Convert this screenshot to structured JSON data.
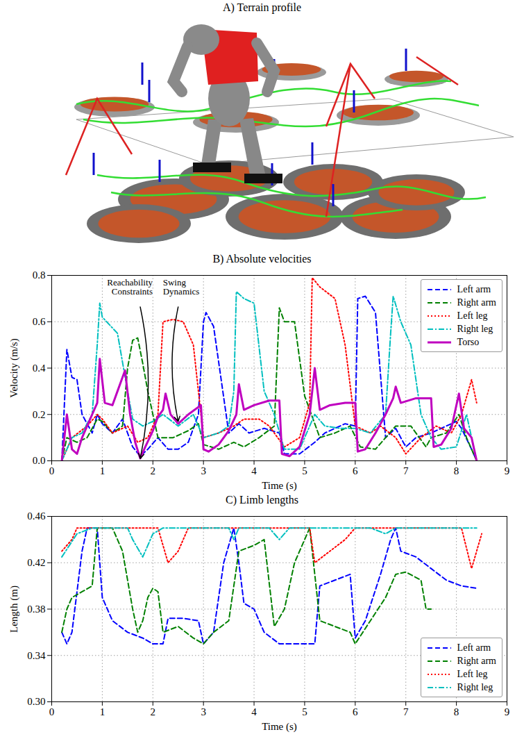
{
  "chart_data": [
    {
      "type": "illustration",
      "title": "A) Terrain profile"
    },
    {
      "type": "line",
      "title": "B) Absolute velocities",
      "x_label": "Time (s)",
      "y_label": "Velocity (m/s)",
      "xlim": [
        0,
        9
      ],
      "xticks": [
        0,
        1,
        2,
        3,
        4,
        5,
        6,
        7,
        8,
        9
      ],
      "ylim": [
        0,
        0.8
      ],
      "yticks": [
        {
          "value": 0,
          "label": "0.0"
        },
        {
          "value": 0.2,
          "label": "0.2"
        },
        {
          "value": 0.4,
          "label": "0.4"
        },
        {
          "value": 0.6,
          "label": "0.6"
        },
        {
          "value": 0.8,
          "label": "0.8"
        }
      ],
      "grid": true,
      "legend": "upper right",
      "annotations": [
        {
          "text": "Reachability Constraints",
          "x": 1.75,
          "y": 0.01
        },
        {
          "text": "Swing Dynamics",
          "x": 2.5,
          "y": 0.17
        }
      ],
      "series": [
        {
          "name": "Left arm",
          "color": "#0000ff",
          "line_style": "dashed",
          "x": [
            0.2,
            0.3,
            0.4,
            0.5,
            0.6,
            0.8,
            0.9,
            1.0,
            1.2,
            1.4,
            1.6,
            1.75,
            1.9,
            2.1,
            2.3,
            2.5,
            2.7,
            2.9,
            3.0,
            3.05,
            3.2,
            3.5,
            3.7,
            3.9,
            4.2,
            4.5,
            4.6,
            4.9,
            5.2,
            5.4,
            5.8,
            6.0,
            6.05,
            6.2,
            6.4,
            6.6,
            6.8,
            7.0,
            7.2,
            7.5,
            7.8,
            8.0,
            8.1,
            8.3,
            8.4
          ],
          "values": [
            0.0,
            0.48,
            0.36,
            0.35,
            0.2,
            0.12,
            0.2,
            0.16,
            0.12,
            0.18,
            0.06,
            0.02,
            0.05,
            0.1,
            0.05,
            0.05,
            0.08,
            0.2,
            0.6,
            0.64,
            0.58,
            0.12,
            0.16,
            0.12,
            0.14,
            0.12,
            0.03,
            0.03,
            0.08,
            0.12,
            0.16,
            0.15,
            0.7,
            0.71,
            0.64,
            0.1,
            0.14,
            0.06,
            0.1,
            0.12,
            0.15,
            0.17,
            0.14,
            0.05,
            0.0
          ]
        },
        {
          "name": "Right arm",
          "color": "#008000",
          "line_style": "dashed",
          "x": [
            0.2,
            0.3,
            0.5,
            0.7,
            0.9,
            1.0,
            1.2,
            1.4,
            1.5,
            1.6,
            1.7,
            1.8,
            1.9,
            2.1,
            2.4,
            2.7,
            2.9,
            3.0,
            3.3,
            3.6,
            3.8,
            4.1,
            4.4,
            4.5,
            4.6,
            4.8,
            5.0,
            5.3,
            5.6,
            5.9,
            6.1,
            6.4,
            6.6,
            6.8,
            7.1,
            7.4,
            7.5,
            7.8,
            8.05,
            8.2,
            8.3,
            8.4
          ],
          "values": [
            0.0,
            0.1,
            0.08,
            0.1,
            0.18,
            0.17,
            0.12,
            0.15,
            0.4,
            0.52,
            0.53,
            0.42,
            0.3,
            0.1,
            0.1,
            0.13,
            0.16,
            0.07,
            0.05,
            0.08,
            0.06,
            0.1,
            0.15,
            0.66,
            0.6,
            0.6,
            0.28,
            0.1,
            0.12,
            0.15,
            0.06,
            0.05,
            0.1,
            0.15,
            0.15,
            0.06,
            0.1,
            0.12,
            0.2,
            0.1,
            0.05,
            0.0
          ]
        },
        {
          "name": "Left leg",
          "color": "#ff0000",
          "line_style": "dotted",
          "x": [
            0.2,
            0.4,
            0.7,
            0.9,
            1.0,
            1.2,
            1.5,
            1.7,
            1.9,
            2.1,
            2.2,
            2.4,
            2.6,
            2.8,
            3.0,
            3.3,
            3.6,
            3.8,
            4.1,
            4.3,
            4.6,
            4.9,
            5.1,
            5.15,
            5.3,
            5.6,
            5.8,
            6.0,
            6.3,
            6.5,
            6.8,
            7.0,
            7.3,
            7.6,
            7.9,
            8.1,
            8.3,
            8.4
          ],
          "values": [
            0.0,
            0.1,
            0.15,
            0.2,
            0.18,
            0.12,
            0.15,
            0.08,
            0.1,
            0.2,
            0.6,
            0.61,
            0.6,
            0.5,
            0.1,
            0.12,
            0.15,
            0.18,
            0.18,
            0.15,
            0.06,
            0.1,
            0.25,
            0.79,
            0.75,
            0.7,
            0.5,
            0.15,
            0.12,
            0.15,
            0.1,
            0.03,
            0.1,
            0.15,
            0.12,
            0.2,
            0.35,
            0.25
          ]
        },
        {
          "name": "Right leg",
          "color": "#00bfbf",
          "line_style": "dashdot",
          "x": [
            0.2,
            0.4,
            0.6,
            0.8,
            0.9,
            0.95,
            1.0,
            1.3,
            1.5,
            1.6,
            1.8,
            2.0,
            2.2,
            2.5,
            2.8,
            3.0,
            3.3,
            3.5,
            3.6,
            3.65,
            3.8,
            4.0,
            4.2,
            4.4,
            4.6,
            4.9,
            5.2,
            5.4,
            5.7,
            6.0,
            6.3,
            6.6,
            6.7,
            6.75,
            6.9,
            7.1,
            7.3,
            7.5,
            7.7,
            8.0,
            8.2,
            8.4
          ],
          "values": [
            0.0,
            0.1,
            0.12,
            0.2,
            0.5,
            0.68,
            0.62,
            0.55,
            0.3,
            0.18,
            0.15,
            0.17,
            0.2,
            0.15,
            0.2,
            0.1,
            0.12,
            0.15,
            0.3,
            0.73,
            0.7,
            0.68,
            0.3,
            0.2,
            0.05,
            0.05,
            0.2,
            0.15,
            0.14,
            0.14,
            0.12,
            0.2,
            0.55,
            0.71,
            0.6,
            0.5,
            0.2,
            0.1,
            0.05,
            0.06,
            0.2,
            0.0
          ]
        },
        {
          "name": "Torso",
          "color": "#bf00bf",
          "line_style": "solid",
          "x": [
            0.2,
            0.3,
            0.4,
            0.5,
            0.6,
            0.8,
            0.9,
            0.95,
            1.05,
            1.2,
            1.3,
            1.4,
            1.45,
            1.55,
            1.65,
            1.75,
            1.85,
            2.0,
            2.1,
            2.2,
            2.25,
            2.35,
            2.5,
            2.7,
            2.95,
            3.0,
            3.1,
            3.3,
            3.5,
            3.65,
            3.7,
            3.8,
            4.0,
            4.3,
            4.5,
            4.55,
            4.7,
            4.9,
            5.1,
            5.2,
            5.3,
            5.5,
            5.8,
            6.0,
            6.05,
            6.2,
            6.4,
            6.6,
            6.75,
            6.8,
            6.9,
            7.2,
            7.5,
            7.55,
            7.7,
            7.9,
            8.05,
            8.15,
            8.3,
            8.4
          ],
          "values": [
            0.0,
            0.2,
            0.05,
            0.03,
            0.1,
            0.2,
            0.25,
            0.44,
            0.25,
            0.24,
            0.3,
            0.36,
            0.39,
            0.2,
            0.08,
            0.01,
            0.06,
            0.13,
            0.19,
            0.22,
            0.29,
            0.2,
            0.16,
            0.2,
            0.24,
            0.05,
            0.04,
            0.07,
            0.13,
            0.2,
            0.33,
            0.22,
            0.24,
            0.26,
            0.26,
            0.03,
            0.02,
            0.06,
            0.2,
            0.4,
            0.22,
            0.24,
            0.25,
            0.25,
            0.04,
            0.05,
            0.12,
            0.2,
            0.27,
            0.32,
            0.25,
            0.27,
            0.27,
            0.06,
            0.07,
            0.14,
            0.29,
            0.14,
            0.1,
            0.0
          ]
        }
      ]
    },
    {
      "type": "line",
      "title": "C) Limb lengths",
      "x_label": "Time (s)",
      "y_label": "Length (m)",
      "xlim": [
        0,
        9
      ],
      "xticks": [
        0,
        1,
        2,
        3,
        4,
        5,
        6,
        7,
        8,
        9
      ],
      "ylim": [
        0.3,
        0.46
      ],
      "yticks": [
        {
          "value": 0.3,
          "label": "0.30"
        },
        {
          "value": 0.34,
          "label": "0.34"
        },
        {
          "value": 0.38,
          "label": "0.38"
        },
        {
          "value": 0.42,
          "label": "0.42"
        },
        {
          "value": 0.46,
          "label": "0.46"
        }
      ],
      "grid": true,
      "legend": "lower right",
      "series": [
        {
          "name": "Left arm",
          "color": "#0000ff",
          "line_style": "dashed",
          "x": [
            0.2,
            0.3,
            0.4,
            0.6,
            0.7,
            0.9,
            1.0,
            1.2,
            1.5,
            1.8,
            2.0,
            2.2,
            2.3,
            2.6,
            2.9,
            3.0,
            3.2,
            3.4,
            3.6,
            3.7,
            3.8,
            4.0,
            4.2,
            4.5,
            5.0,
            5.2,
            5.3,
            5.6,
            5.9,
            6.0,
            6.2,
            6.5,
            6.7,
            6.8,
            6.9,
            7.2,
            7.5,
            7.8,
            8.1,
            8.4
          ],
          "values": [
            0.36,
            0.35,
            0.36,
            0.43,
            0.45,
            0.45,
            0.39,
            0.37,
            0.36,
            0.355,
            0.35,
            0.35,
            0.372,
            0.372,
            0.37,
            0.35,
            0.36,
            0.42,
            0.45,
            0.42,
            0.385,
            0.38,
            0.36,
            0.35,
            0.35,
            0.35,
            0.4,
            0.405,
            0.41,
            0.355,
            0.37,
            0.41,
            0.44,
            0.45,
            0.43,
            0.425,
            0.415,
            0.405,
            0.4,
            0.398
          ]
        },
        {
          "name": "Right arm",
          "color": "#008000",
          "line_style": "dashed",
          "x": [
            0.2,
            0.3,
            0.4,
            0.6,
            0.8,
            0.9,
            1.2,
            1.4,
            1.6,
            1.7,
            1.8,
            1.9,
            2.0,
            2.1,
            2.2,
            2.5,
            2.8,
            3.0,
            3.2,
            3.5,
            3.6,
            3.7,
            4.0,
            4.2,
            4.4,
            4.6,
            4.8,
            5.0,
            5.1,
            5.3,
            5.6,
            5.9,
            6.0,
            6.3,
            6.6,
            6.8,
            7.0,
            7.3,
            7.4,
            7.5
          ],
          "values": [
            0.36,
            0.38,
            0.39,
            0.395,
            0.4,
            0.45,
            0.45,
            0.43,
            0.38,
            0.36,
            0.37,
            0.39,
            0.398,
            0.395,
            0.36,
            0.365,
            0.355,
            0.35,
            0.36,
            0.37,
            0.4,
            0.43,
            0.435,
            0.44,
            0.365,
            0.38,
            0.42,
            0.44,
            0.45,
            0.37,
            0.365,
            0.36,
            0.35,
            0.37,
            0.39,
            0.41,
            0.412,
            0.405,
            0.38,
            0.38
          ]
        },
        {
          "name": "Left leg",
          "color": "#ff0000",
          "line_style": "dotted",
          "x": [
            0.2,
            0.4,
            0.5,
            2.1,
            2.3,
            2.5,
            2.7,
            5.1,
            5.2,
            5.5,
            5.8,
            6.0,
            8.1,
            8.3,
            8.5
          ],
          "values": [
            0.43,
            0.44,
            0.45,
            0.45,
            0.42,
            0.43,
            0.45,
            0.45,
            0.42,
            0.43,
            0.44,
            0.45,
            0.45,
            0.415,
            0.445
          ]
        },
        {
          "name": "Right leg",
          "color": "#00bfbf",
          "line_style": "dashdot",
          "x": [
            0.2,
            0.5,
            0.8,
            1.5,
            1.6,
            1.8,
            2.0,
            2.2,
            3.5,
            3.6,
            3.7,
            4.3,
            4.5,
            4.7,
            6.3,
            6.6,
            6.8,
            8.4
          ],
          "values": [
            0.425,
            0.445,
            0.45,
            0.45,
            0.44,
            0.425,
            0.445,
            0.45,
            0.45,
            0.44,
            0.45,
            0.45,
            0.44,
            0.45,
            0.45,
            0.445,
            0.45,
            0.45
          ]
        }
      ]
    }
  ]
}
